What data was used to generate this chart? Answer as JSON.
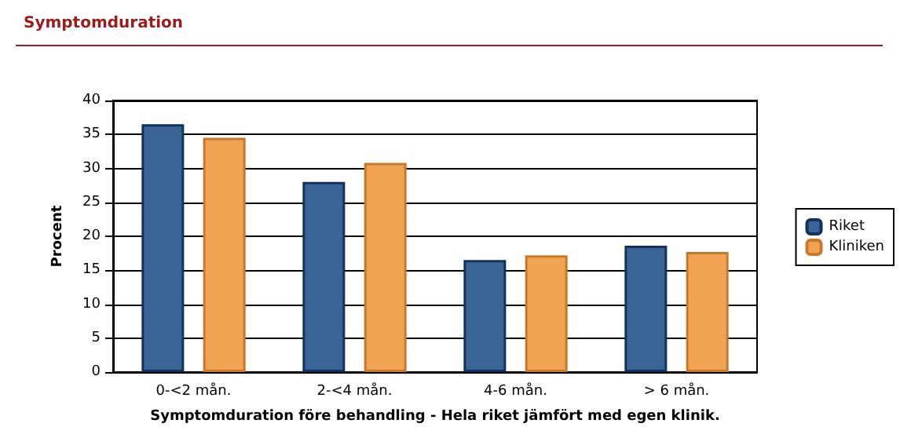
{
  "chart_data": {
    "type": "bar",
    "title": "Symptomduration",
    "xlabel": "Symptomduration före behandling - Hela riket jämfört med egen klinik.",
    "ylabel": "Procent",
    "categories": [
      "0-<2 mån.",
      "2-<4 mån.",
      "4-6 mån.",
      "> 6 mån."
    ],
    "series": [
      {
        "name": "Riket",
        "color": "#3a6496",
        "values": [
          36.5,
          28.0,
          16.5,
          18.6
        ]
      },
      {
        "name": "Kliniken",
        "color": "#f0a352",
        "values": [
          34.5,
          30.8,
          17.2,
          17.7
        ]
      }
    ],
    "ylim": [
      0,
      40
    ],
    "yticks": [
      0,
      5,
      10,
      15,
      20,
      25,
      30,
      35,
      40
    ],
    "grid": "y",
    "legend": "right"
  }
}
